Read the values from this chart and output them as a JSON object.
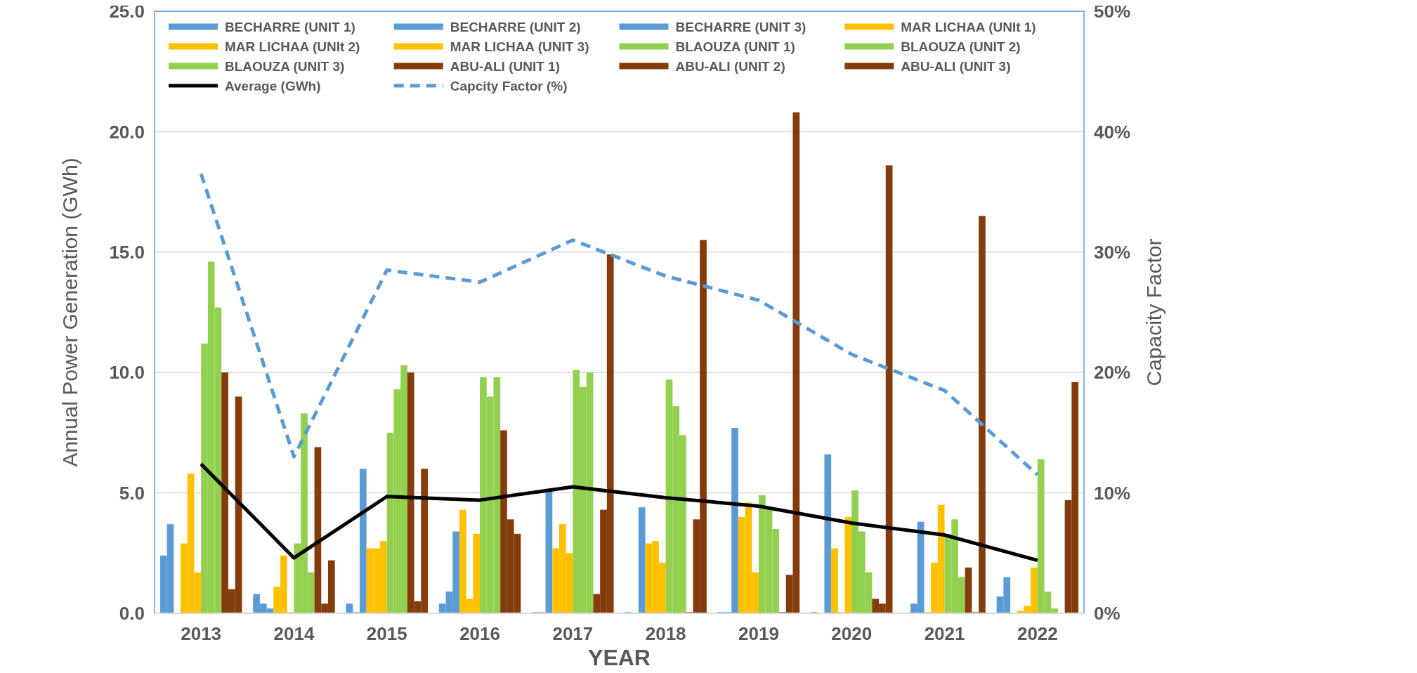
{
  "chart_data": {
    "type": "bar",
    "xlabel": "YEAR",
    "ylabel": "Annual Power Generation (GWh)",
    "y2label": "Capacity Factor",
    "categories": [
      "2013",
      "2014",
      "2015",
      "2016",
      "2017",
      "2018",
      "2019",
      "2020",
      "2021",
      "2022"
    ],
    "ylim": [
      0,
      25
    ],
    "yticks": [
      {
        "value": 0,
        "label": "0.0"
      },
      {
        "value": 5,
        "label": "5.0"
      },
      {
        "value": 10,
        "label": "10.0"
      },
      {
        "value": 15,
        "label": "15.0"
      },
      {
        "value": 20,
        "label": "20.0"
      },
      {
        "value": 25,
        "label": "25.0"
      }
    ],
    "y2lim": [
      0,
      50
    ],
    "y2ticks": [
      {
        "value": 0,
        "label": "0%"
      },
      {
        "value": 10,
        "label": "10%"
      },
      {
        "value": 20,
        "label": "20%"
      },
      {
        "value": 30,
        "label": "30%"
      },
      {
        "value": 40,
        "label": "40%"
      },
      {
        "value": 50,
        "label": "50%"
      }
    ],
    "grid": "y",
    "legend": "top",
    "series": [
      {
        "name": "BECHARRE (UNIT 1)",
        "color": "#5b9bd5",
        "values": [
          2.4,
          0.8,
          0.4,
          0.4,
          0.05,
          0.05,
          0.05,
          0.05,
          0,
          0.7
        ]
      },
      {
        "name": "BECHARRE (UNIT 2)",
        "color": "#5b9bd5",
        "values": [
          3.7,
          0.4,
          0.05,
          0.9,
          0.05,
          0,
          0.05,
          0,
          0.4,
          1.5
        ]
      },
      {
        "name": "BECHARRE (UNIT 3)",
        "color": "#5b9bd5",
        "values": [
          0,
          0.2,
          6.0,
          3.4,
          5.1,
          4.4,
          7.7,
          6.6,
          3.8,
          0
        ]
      },
      {
        "name": "MAR LICHAA (UNIt 1)",
        "color": "#ffc000",
        "values": [
          2.9,
          1.1,
          2.7,
          4.3,
          2.7,
          2.9,
          4.0,
          2.7,
          0.05,
          0.1
        ]
      },
      {
        "name": "MAR LICHAA (UNIt 2)",
        "color": "#ffc000",
        "values": [
          5.8,
          2.4,
          2.7,
          0.6,
          3.7,
          3.0,
          4.6,
          0.05,
          2.1,
          0.3
        ]
      },
      {
        "name": "MAR LICHAA (UNIT 3)",
        "color": "#ffc000",
        "values": [
          1.7,
          0.05,
          3.0,
          3.3,
          2.5,
          2.1,
          1.7,
          4.0,
          4.5,
          1.9
        ]
      },
      {
        "name": "BLAOUZA (UNIT 1)",
        "color": "#92d050",
        "values": [
          11.2,
          2.9,
          7.5,
          9.8,
          10.1,
          9.7,
          4.9,
          5.1,
          3.3,
          6.4
        ]
      },
      {
        "name": "BLAOUZA (UNIT 2)",
        "color": "#92d050",
        "values": [
          14.6,
          8.3,
          9.3,
          9.0,
          9.4,
          8.6,
          4.4,
          3.4,
          3.9,
          0.9
        ]
      },
      {
        "name": "BLAOUZA (UNIT 3)",
        "color": "#92d050",
        "values": [
          12.7,
          1.7,
          10.3,
          9.8,
          10.0,
          7.4,
          3.5,
          1.7,
          1.5,
          0.2
        ]
      },
      {
        "name": "ABU-ALI (UNIT 1)",
        "color": "#843c0c",
        "values": [
          10.0,
          6.9,
          10.0,
          7.6,
          0.8,
          0.05,
          0.05,
          0.6,
          1.9,
          0
        ]
      },
      {
        "name": "ABU-ALI (UNIT 2)",
        "color": "#843c0c",
        "values": [
          1.0,
          0.4,
          0.5,
          3.9,
          4.3,
          3.9,
          1.6,
          0.4,
          0.05,
          4.7
        ]
      },
      {
        "name": "ABU-ALI (UNIT 3)",
        "color": "#843c0c",
        "values": [
          9.0,
          2.2,
          6.0,
          3.3,
          14.9,
          15.5,
          20.8,
          18.6,
          16.5,
          9.6
        ]
      },
      {
        "name": "Average (GWh)",
        "type": "line",
        "color": "#000000",
        "line_style": "solid",
        "values": [
          6.2,
          2.3,
          4.85,
          4.7,
          5.25,
          4.8,
          4.45,
          3.75,
          3.25,
          2.2
        ]
      },
      {
        "name": "Capcity Factor (%)",
        "type": "line",
        "axis": "y2",
        "color": "#5b9bd5",
        "line_style": "dashed",
        "values": [
          36.5,
          13,
          28.5,
          27.5,
          31,
          28,
          26,
          21.5,
          18.5,
          11.5
        ]
      }
    ]
  }
}
